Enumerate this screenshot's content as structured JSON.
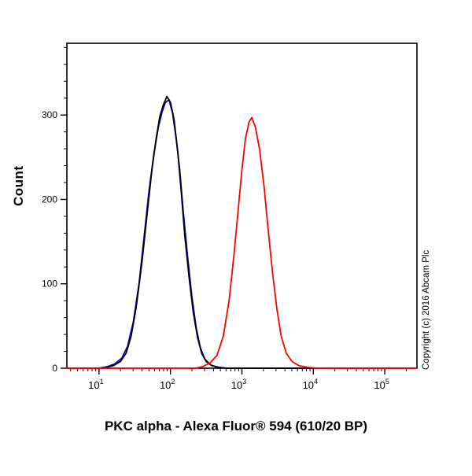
{
  "chart_data": {
    "type": "line",
    "subtype": "flow-cytometry-histogram",
    "title": "PKC alpha - Alexa Fluor® 594 (610/20 BP)",
    "xlabel": "PKC alpha - Alexa Fluor® 594 (610/20 BP)",
    "ylabel": "Count",
    "copyright": "Copyright (c) 2016 Abcam Plc",
    "x_scale": "log10",
    "x_log_range": [
      0.55,
      5.45
    ],
    "ylim": [
      0,
      385
    ],
    "x_tick_base": "10",
    "x_tick_exponents": [
      1,
      2,
      3,
      4,
      5
    ],
    "y_ticks": [
      0,
      100,
      200,
      300
    ],
    "y_minor_step": 20,
    "grid": false,
    "legend": "none",
    "axis_color": "#000000",
    "series": [
      {
        "name": "unlabelled-control-blue",
        "color": "#0000cc",
        "peak_x_log": 1.98,
        "peak_count": 318,
        "points": [
          [
            0.55,
            0
          ],
          [
            1.0,
            0
          ],
          [
            1.12,
            2
          ],
          [
            1.22,
            5
          ],
          [
            1.32,
            12
          ],
          [
            1.4,
            26
          ],
          [
            1.48,
            55
          ],
          [
            1.56,
            100
          ],
          [
            1.63,
            155
          ],
          [
            1.7,
            210
          ],
          [
            1.77,
            255
          ],
          [
            1.83,
            285
          ],
          [
            1.88,
            303
          ],
          [
            1.93,
            315
          ],
          [
            1.98,
            318
          ],
          [
            2.03,
            302
          ],
          [
            2.08,
            272
          ],
          [
            2.13,
            235
          ],
          [
            2.18,
            185
          ],
          [
            2.24,
            132
          ],
          [
            2.3,
            85
          ],
          [
            2.36,
            48
          ],
          [
            2.42,
            24
          ],
          [
            2.48,
            11
          ],
          [
            2.56,
            4
          ],
          [
            2.66,
            1
          ],
          [
            2.78,
            0
          ],
          [
            5.45,
            0
          ]
        ]
      },
      {
        "name": "isotype-control-black",
        "color": "#000000",
        "peak_x_log": 1.95,
        "peak_count": 322,
        "points": [
          [
            0.55,
            0
          ],
          [
            1.0,
            0
          ],
          [
            1.1,
            1
          ],
          [
            1.2,
            3
          ],
          [
            1.3,
            8
          ],
          [
            1.38,
            18
          ],
          [
            1.45,
            38
          ],
          [
            1.52,
            72
          ],
          [
            1.6,
            125
          ],
          [
            1.67,
            180
          ],
          [
            1.74,
            235
          ],
          [
            1.8,
            272
          ],
          [
            1.85,
            298
          ],
          [
            1.9,
            312
          ],
          [
            1.95,
            322
          ],
          [
            2.0,
            315
          ],
          [
            2.05,
            295
          ],
          [
            2.1,
            258
          ],
          [
            2.15,
            210
          ],
          [
            2.2,
            158
          ],
          [
            2.26,
            108
          ],
          [
            2.32,
            66
          ],
          [
            2.38,
            36
          ],
          [
            2.44,
            17
          ],
          [
            2.5,
            8
          ],
          [
            2.58,
            3
          ],
          [
            2.68,
            1
          ],
          [
            2.8,
            0
          ],
          [
            5.45,
            0
          ]
        ]
      },
      {
        "name": "pkc-alpha-labelled-red",
        "color": "#ff0000",
        "peak_x_log": 3.14,
        "peak_count": 297,
        "points": [
          [
            0.55,
            0
          ],
          [
            2.35,
            0
          ],
          [
            2.45,
            2
          ],
          [
            2.55,
            6
          ],
          [
            2.65,
            15
          ],
          [
            2.74,
            38
          ],
          [
            2.82,
            80
          ],
          [
            2.89,
            135
          ],
          [
            2.95,
            190
          ],
          [
            3.0,
            235
          ],
          [
            3.05,
            272
          ],
          [
            3.1,
            292
          ],
          [
            3.14,
            297
          ],
          [
            3.19,
            285
          ],
          [
            3.25,
            258
          ],
          [
            3.31,
            215
          ],
          [
            3.37,
            162
          ],
          [
            3.43,
            112
          ],
          [
            3.49,
            70
          ],
          [
            3.55,
            38
          ],
          [
            3.62,
            18
          ],
          [
            3.7,
            8
          ],
          [
            3.8,
            3
          ],
          [
            3.92,
            1
          ],
          [
            4.05,
            0
          ],
          [
            5.45,
            0
          ]
        ]
      }
    ]
  }
}
